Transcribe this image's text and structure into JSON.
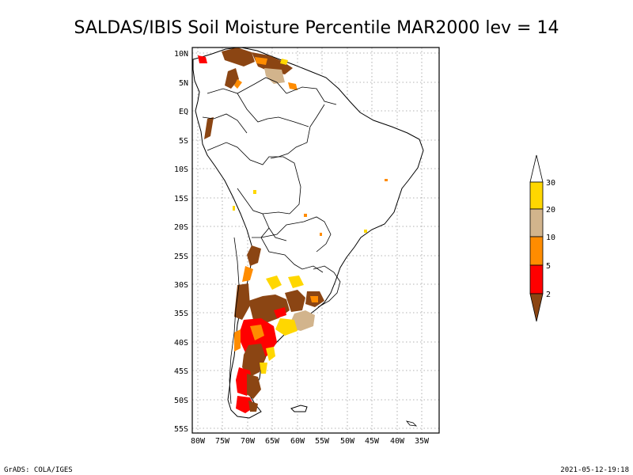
{
  "title": "SALDAS/IBIS Soil Moisture Percentile MAR2000 lev = 14",
  "footer_left": "GrADS: COLA/IGES",
  "footer_right": "2021-05-12-19:18",
  "lat_labels": [
    "10N",
    "5N",
    "EQ",
    "5S",
    "10S",
    "15S",
    "20S",
    "25S",
    "30S",
    "35S",
    "40S",
    "45S",
    "50S",
    "55S"
  ],
  "lon_labels": [
    "80W",
    "75W",
    "70W",
    "65W",
    "60W",
    "55W",
    "50W",
    "45W",
    "40W",
    "35W"
  ],
  "legend": {
    "labels": [
      "2",
      "5",
      "10",
      "20",
      "30"
    ],
    "colors": {
      "below_2": "#8b4513",
      "2_5": "#ff0000",
      "5_10": "#ff8c00",
      "10_20": "#d2b48c",
      "20_30": "#ffd700",
      "above_30": "#ffffff"
    }
  }
}
